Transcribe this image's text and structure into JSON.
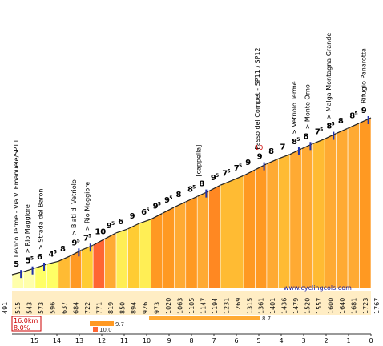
{
  "site": "www.cyclingcols.com",
  "chart_data": {
    "type": "area",
    "start_altitude": "491",
    "end_altitude": "1767",
    "segment_altitudes": [
      "515",
      "543",
      "573",
      "596",
      "637",
      "684",
      "722",
      "771",
      "819",
      "850",
      "894",
      "926",
      "973",
      "1020",
      "1063",
      "1105",
      "1147",
      "1194",
      "1231",
      "1269",
      "1315",
      "1361",
      "1401",
      "1436",
      "1479",
      "1520",
      "1557",
      "1600",
      "1640",
      "1681",
      "1723"
    ],
    "gradients": [
      {
        "main": "5",
        "sup": ""
      },
      {
        "main": "5",
        "sup": "5"
      },
      {
        "main": "6",
        "sup": ""
      },
      {
        "main": "4",
        "sup": "5"
      },
      {
        "main": "8",
        "sup": ""
      },
      {
        "main": "9",
        "sup": "5"
      },
      {
        "main": "7",
        "sup": "5"
      },
      {
        "main": "10",
        "sup": ""
      },
      {
        "main": "9",
        "sup": "5"
      },
      {
        "main": "6",
        "sup": ""
      },
      {
        "main": "9",
        "sup": ""
      },
      {
        "main": "6",
        "sup": "5"
      },
      {
        "main": "9",
        "sup": "5"
      },
      {
        "main": "9",
        "sup": "5"
      },
      {
        "main": "8",
        "sup": ""
      },
      {
        "main": "8",
        "sup": "5"
      },
      {
        "main": "8",
        "sup": ""
      },
      {
        "main": "9",
        "sup": "5"
      },
      {
        "main": "7",
        "sup": "5"
      },
      {
        "main": "7",
        "sup": "5"
      },
      {
        "main": "9",
        "sup": ""
      },
      {
        "main": "9",
        "sup": ""
      },
      {
        "main": "8",
        "sup": ""
      },
      {
        "main": "7",
        "sup": ""
      },
      {
        "main": "8",
        "sup": "5"
      },
      {
        "main": "8",
        "sup": ""
      },
      {
        "main": "7",
        "sup": "5"
      },
      {
        "main": "8",
        "sup": "5"
      },
      {
        "main": "8",
        "sup": ""
      },
      {
        "main": "8",
        "sup": "5"
      },
      {
        "main": "9",
        "sup": ""
      }
    ],
    "colors": [
      "#ffffaa",
      "#ffffaa",
      "#ffff66",
      "#ffff66",
      "#ffbb33",
      "#ff9922",
      "#ffcc33",
      "#ff6633",
      "#ffaa33",
      "#ffee55",
      "#ffcc33",
      "#ffee55",
      "#ff9922",
      "#ff9922",
      "#ffaa33",
      "#ff9922",
      "#ffaa33",
      "#ff8822",
      "#ffbb33",
      "#ffbb33",
      "#ff9922",
      "#ff9922",
      "#ffaa33",
      "#ffbb33",
      "#ffaa33",
      "#ffaa33",
      "#ffbb33",
      "#ffaa33",
      "#ffaa33",
      "#ffaa33",
      "#ff9922"
    ],
    "x_ticks": [
      "15",
      "14",
      "13",
      "12",
      "11",
      "10",
      "9",
      "8",
      "7",
      "6",
      "5",
      "4",
      "3",
      "2",
      "1",
      "0"
    ],
    "waypoints": [
      {
        "label": "Levico Terme - Via V. Emanuele/SP11",
        "segment": 0
      },
      {
        "label": "> Rio Maggiore",
        "segment": 1
      },
      {
        "label": "> Strada del Baron",
        "segment": 2
      },
      {
        "label": "> Biati di Vetriolo",
        "segment": 5
      },
      {
        "label": "> Rio Maggiore",
        "segment": 6
      },
      {
        "label": "[cappella]",
        "segment": 16
      },
      {
        "label": "Passo del Compet - SP11 / SP12",
        "segment": 21
      },
      {
        "label": "> Vetriolo Terme",
        "segment": 24
      },
      {
        "label": "> Monte Orno",
        "segment": 25
      },
      {
        "label": "> Malga Montagna Grande",
        "segment": 27
      },
      {
        "label": "Rifugio Panarotta",
        "segment": 30
      }
    ],
    "max_gradient_marker": "10",
    "summary": {
      "distance": "16.0km",
      "avg_gradient": "8.0%",
      "max_km_label": "9.7",
      "max_500m_label": "10.0",
      "long_bar_label": "8.7"
    }
  }
}
